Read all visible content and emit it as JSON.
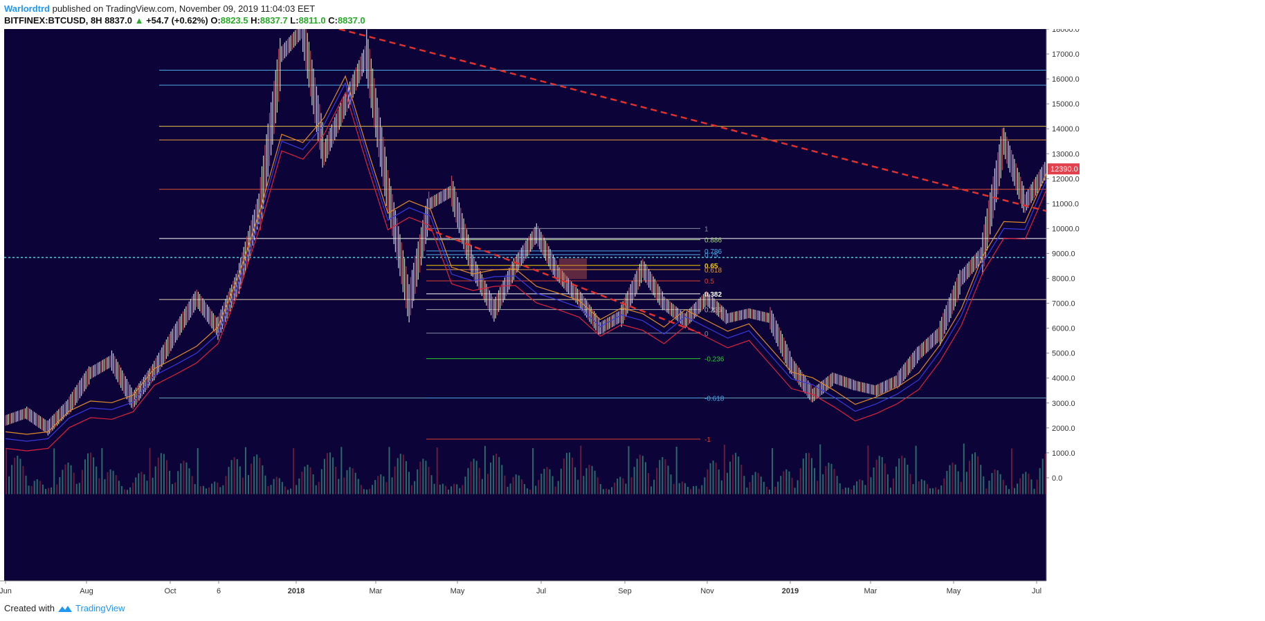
{
  "header": {
    "author": "Warlordtrd",
    "published": "published on TradingView.com, November 09, 2019 11:04:03 EET",
    "symbol": "BITFINEX:BTCUSD, 8H",
    "last": "8837.0",
    "change": "+54.7 (+0.62%)",
    "o_label": "O:",
    "o_val": "8823.5",
    "h_label": "H:",
    "h_val": "8837.7",
    "l_label": "L:",
    "l_val": "8811.0",
    "c_label": "C:",
    "c_val": "8837.0"
  },
  "footer": {
    "created": "Created with",
    "brand": "TradingView"
  },
  "colors": {
    "bg": "#0c0439",
    "up": "#c8d6c8",
    "down": "#9b1f3a",
    "accent": "#2196f3"
  },
  "chart_data": {
    "type": "line",
    "title": "",
    "symbol": "BITFINEX:BTCUSD",
    "timeframe": "8H",
    "ylim": [
      -600,
      18100
    ],
    "y_ticks": [
      "18000.0",
      "17000.0",
      "16000.0",
      "15000.0",
      "14000.0",
      "13000.0",
      "12000.0",
      "11000.0",
      "10000.0",
      "9000.0",
      "8000.0",
      "7000.0",
      "6000.0",
      "5000.0",
      "4000.0",
      "3000.0",
      "2000.0",
      "1000.0",
      "0.0"
    ],
    "x_ticks": [
      "Jun",
      "Aug",
      "Oct",
      "6",
      "2018",
      "Mar",
      "May",
      "Jul",
      "Sep",
      "Nov",
      "2019",
      "Mar",
      "May",
      "Jul"
    ],
    "price_label": "12390.0",
    "price_series": [
      {
        "t": "Jun",
        "v": 2300
      },
      {
        "t": "Jul",
        "v": 2600
      },
      {
        "t": "Jul",
        "v": 2000
      },
      {
        "t": "Aug",
        "v": 2900
      },
      {
        "t": "Aug",
        "v": 4200
      },
      {
        "t": "Sep",
        "v": 4700
      },
      {
        "t": "Sep",
        "v": 3100
      },
      {
        "t": "Oct",
        "v": 4300
      },
      {
        "t": "Oct",
        "v": 5800
      },
      {
        "t": "Nov",
        "v": 7200
      },
      {
        "t": "Nov",
        "v": 6000
      },
      {
        "t": "Nov",
        "v": 8000
      },
      {
        "t": "Dec",
        "v": 11000
      },
      {
        "t": "Dec",
        "v": 17000
      },
      {
        "t": "Dec",
        "v": 18000
      },
      {
        "t": "Dec",
        "v": 13000
      },
      {
        "t": "2018",
        "v": 15000
      },
      {
        "t": "Jan",
        "v": 17000
      },
      {
        "t": "Jan",
        "v": 11500
      },
      {
        "t": "Feb",
        "v": 7000
      },
      {
        "t": "Feb",
        "v": 11000
      },
      {
        "t": "Mar",
        "v": 11500
      },
      {
        "t": "Mar",
        "v": 8500
      },
      {
        "t": "Apr",
        "v": 6700
      },
      {
        "t": "Apr",
        "v": 8500
      },
      {
        "t": "May",
        "v": 9800
      },
      {
        "t": "May",
        "v": 8200
      },
      {
        "t": "Jun",
        "v": 7200
      },
      {
        "t": "Jun",
        "v": 6000
      },
      {
        "t": "Jul",
        "v": 6500
      },
      {
        "t": "Jul",
        "v": 8400
      },
      {
        "t": "Aug",
        "v": 7000
      },
      {
        "t": "Aug",
        "v": 6300
      },
      {
        "t": "Sep",
        "v": 7200
      },
      {
        "t": "Sep",
        "v": 6400
      },
      {
        "t": "Oct",
        "v": 6600
      },
      {
        "t": "Nov",
        "v": 6400
      },
      {
        "t": "Nov",
        "v": 4500
      },
      {
        "t": "Dec",
        "v": 3300
      },
      {
        "t": "Dec",
        "v": 4000
      },
      {
        "t": "2019",
        "v": 3700
      },
      {
        "t": "Feb",
        "v": 3500
      },
      {
        "t": "Mar",
        "v": 3900
      },
      {
        "t": "Apr",
        "v": 5000
      },
      {
        "t": "May",
        "v": 5800
      },
      {
        "t": "May",
        "v": 8000
      },
      {
        "t": "Jun",
        "v": 9000
      },
      {
        "t": "Jun",
        "v": 13500
      },
      {
        "t": "Jul",
        "v": 11000
      },
      {
        "t": "Jul",
        "v": 12390
      }
    ],
    "horizontal_levels": [
      {
        "price": 16350,
        "color": "#4fa9e6"
      },
      {
        "price": 15750,
        "color": "#4fa9e6"
      },
      {
        "price": 14100,
        "color": "#e8c547"
      },
      {
        "price": 13550,
        "color": "#e69a3a"
      },
      {
        "price": 11570,
        "color": "#e0502f"
      },
      {
        "price": 9600,
        "color": "#ffffff"
      },
      {
        "price": 7150,
        "color": "#e8d8b0"
      },
      {
        "price": 3200,
        "color": "#66a3b8"
      }
    ],
    "fib_levels": [
      {
        "label": "1",
        "price": 10000,
        "color": "#8a8fa0"
      },
      {
        "label": "0.886",
        "price": 9550,
        "color": "#a8d48a"
      },
      {
        "label": "0.786",
        "price": 9100,
        "color": "#4fa9e6"
      },
      {
        "label": "0.75",
        "price": 8950,
        "color": "#4fa9e6"
      },
      {
        "label": "0.65",
        "price": 8520,
        "color": "#f5d000"
      },
      {
        "label": "0.618",
        "price": 8350,
        "color": "#e69a3a"
      },
      {
        "label": "0.5",
        "price": 7900,
        "color": "#e0402f"
      },
      {
        "label": "0.382",
        "price": 7380,
        "color": "#ffffff"
      },
      {
        "label": "0.236",
        "price": 6750,
        "color": "#b0b0b0"
      },
      {
        "label": "0",
        "price": 5800,
        "color": "#8a8fa0"
      },
      {
        "label": "-0.236",
        "price": 4780,
        "color": "#2ad02a"
      },
      {
        "label": "-0.618",
        "price": 3200,
        "color": "#4fa9e6"
      },
      {
        "label": "-1",
        "price": 1550,
        "color": "#e0402f"
      }
    ],
    "dotted_level": 8837,
    "trendlines": [
      {
        "from_date": "Dec 2017",
        "from_price": 18000,
        "to_date": "Jul 2019",
        "to_price": 10700,
        "color": "#e0302f",
        "style": "dashed"
      },
      {
        "from_date": "Apr 2018",
        "from_price": 10000,
        "to_date": "Nov 2018",
        "to_price": 5800,
        "color": "#e0302f",
        "style": "dashed"
      }
    ]
  }
}
